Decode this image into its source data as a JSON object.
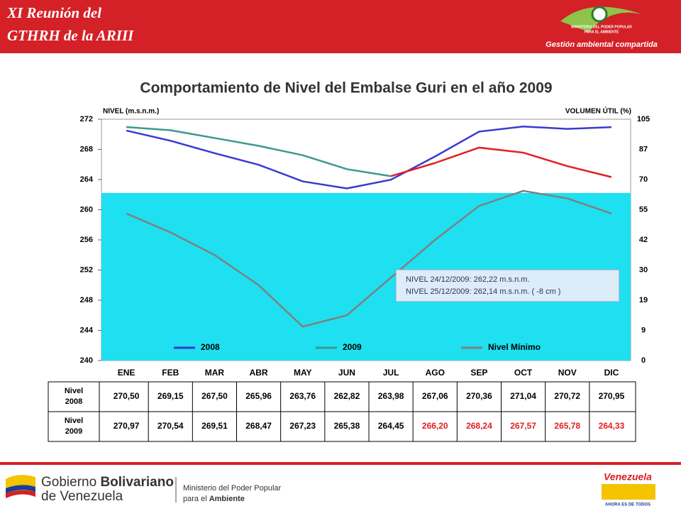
{
  "header": {
    "title_lines": [
      "XI Reunión del",
      "GTHRH de la ARIII"
    ],
    "logo_text": [
      "MINISTERIO DEL PODER POPULAR",
      "PARA EL AMBIENTE"
    ],
    "motto": "Gestión ambiental compartida"
  },
  "chart_data": {
    "type": "line",
    "title": "Comportamiento de Nivel del Embalse Guri en el año 2009",
    "y_label": "NIVEL (m.s.n.m.)",
    "y2_label": "VOLUMEN ÚTIL (%)",
    "categories": [
      "ENE",
      "FEB",
      "MAR",
      "ABR",
      "MAY",
      "JUN",
      "JUL",
      "AGO",
      "SEP",
      "OCT",
      "NOV",
      "DIC"
    ],
    "series": [
      {
        "name": "2008",
        "color": "#3a3ad0",
        "values": [
          270.5,
          269.15,
          267.5,
          265.96,
          263.76,
          262.82,
          263.98,
          267.06,
          270.36,
          271.04,
          270.72,
          270.95
        ],
        "value_labels": [
          "270,50",
          "269,15",
          "267,50",
          "265,96",
          "263,76",
          "262,82",
          "263,98",
          "267,06",
          "270,36",
          "271,04",
          "270,72",
          "270,95"
        ],
        "label_colors": [
          "#000",
          "#000",
          "#000",
          "#000",
          "#000",
          "#000",
          "#000",
          "#000",
          "#000",
          "#000",
          "#000",
          "#000"
        ]
      },
      {
        "name": "2009",
        "color": "#3a9a8c",
        "values": [
          270.97,
          270.54,
          269.51,
          268.47,
          267.23,
          265.38,
          264.45,
          266.2,
          268.24,
          267.57,
          265.78,
          264.33
        ],
        "value_labels": [
          "270,97",
          "270,54",
          "269,51",
          "268,47",
          "267,23",
          "265,38",
          "264,45",
          "266,20",
          "268,24",
          "267,57",
          "265,78",
          "264,33"
        ],
        "point_colors": [
          "#3a9a8c",
          "#3a9a8c",
          "#3a9a8c",
          "#3a9a8c",
          "#3a9a8c",
          "#3a9a8c",
          "#3a9a8c",
          "#e02020",
          "#e02020",
          "#e02020",
          "#e02020",
          "#e02020"
        ],
        "label_colors": [
          "#000",
          "#000",
          "#000",
          "#000",
          "#000",
          "#000",
          "#000",
          "#e02020",
          "#e02020",
          "#e02020",
          "#e02020",
          "#e02020"
        ]
      },
      {
        "name": "Nivel Mínimo",
        "color": "#808080",
        "values": [
          259.5,
          257,
          254,
          250,
          244.5,
          246,
          251,
          256,
          260.5,
          262.5,
          261.5,
          259.5
        ]
      }
    ],
    "fill_level": 262.22,
    "fill_color": "#1ee0f0",
    "ylim": [
      240,
      272
    ],
    "yticks": [
      240,
      244,
      248,
      252,
      256,
      260,
      264,
      268,
      272
    ],
    "y2ticks": [
      0,
      9,
      19,
      30,
      42,
      55,
      70,
      87,
      105
    ],
    "annotation": [
      "NIVEL 24/12/2009: 262,22 m.s.n.m.",
      "NIVEL 25/12/2009: 262,14 m.s.n.m.  ( -8 cm )"
    ],
    "table_row_label": "Nivel",
    "grid": false
  },
  "footer": {
    "gov": [
      "Gobierno ",
      "Bolivariano",
      "de Venezuela"
    ],
    "ministry": [
      "Ministerio del Poder Popular",
      "para el ",
      "Ambiente"
    ],
    "brand": "Venezuela",
    "brand_sub": "AHORA ES DE TODOS"
  }
}
